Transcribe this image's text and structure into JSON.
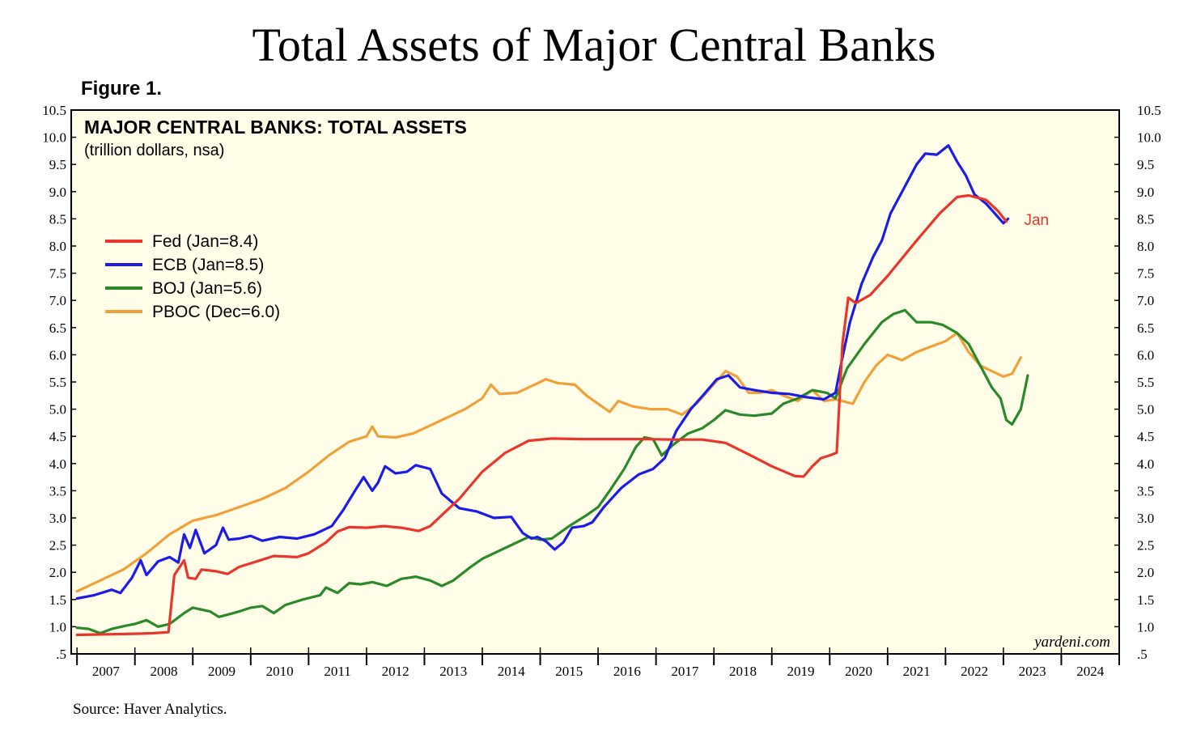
{
  "page_title": "Total Assets of Major Central Banks",
  "figure_label": "Figure 1.",
  "source": "Source: Haver Analytics.",
  "chart_data": {
    "type": "line",
    "title": "MAJOR CENTRAL BANKS: TOTAL ASSETS",
    "subtitle": "(trillion dollars, nsa)",
    "credit": "yardeni.com",
    "end_label": "Jan",
    "background": "#fffde8",
    "xlim": [
      2006.9,
      2025.0
    ],
    "ylim": [
      0.5,
      10.5
    ],
    "y_ticks": [
      ".5",
      "1.0",
      "1.5",
      "2.0",
      "2.5",
      "3.0",
      "3.5",
      "4.0",
      "4.5",
      "5.0",
      "5.5",
      "6.0",
      "6.5",
      "7.0",
      "7.5",
      "8.0",
      "8.5",
      "9.0",
      "9.5",
      "10.0",
      "10.5"
    ],
    "x_tick_labels": [
      "2007",
      "2008",
      "2009",
      "2010",
      "2011",
      "2012",
      "2013",
      "2014",
      "2015",
      "2016",
      "2017",
      "2018",
      "2019",
      "2020",
      "2021",
      "2022",
      "2023",
      "2024"
    ],
    "grid": false,
    "legend_position": "upper-left",
    "series": [
      {
        "name": "Fed (Jan=8.4)",
        "color": "#e8362a",
        "points": [
          [
            2007.0,
            0.85
          ],
          [
            2007.5,
            0.86
          ],
          [
            2008.0,
            0.87
          ],
          [
            2008.3,
            0.88
          ],
          [
            2008.58,
            0.9
          ],
          [
            2008.68,
            1.95
          ],
          [
            2008.85,
            2.22
          ],
          [
            2008.92,
            1.9
          ],
          [
            2009.05,
            1.88
          ],
          [
            2009.15,
            2.05
          ],
          [
            2009.4,
            2.02
          ],
          [
            2009.6,
            1.97
          ],
          [
            2009.8,
            2.1
          ],
          [
            2010.1,
            2.2
          ],
          [
            2010.4,
            2.3
          ],
          [
            2010.8,
            2.28
          ],
          [
            2011.0,
            2.35
          ],
          [
            2011.3,
            2.55
          ],
          [
            2011.5,
            2.75
          ],
          [
            2011.7,
            2.83
          ],
          [
            2012.0,
            2.82
          ],
          [
            2012.3,
            2.85
          ],
          [
            2012.6,
            2.82
          ],
          [
            2012.9,
            2.76
          ],
          [
            2013.1,
            2.85
          ],
          [
            2013.3,
            3.05
          ],
          [
            2013.6,
            3.35
          ],
          [
            2014.0,
            3.85
          ],
          [
            2014.4,
            4.2
          ],
          [
            2014.8,
            4.42
          ],
          [
            2015.2,
            4.46
          ],
          [
            2015.7,
            4.45
          ],
          [
            2016.2,
            4.45
          ],
          [
            2016.8,
            4.45
          ],
          [
            2017.3,
            4.44
          ],
          [
            2017.8,
            4.44
          ],
          [
            2018.2,
            4.38
          ],
          [
            2018.6,
            4.17
          ],
          [
            2019.0,
            3.95
          ],
          [
            2019.4,
            3.77
          ],
          [
            2019.55,
            3.76
          ],
          [
            2019.7,
            3.95
          ],
          [
            2019.85,
            4.1
          ],
          [
            2020.0,
            4.15
          ],
          [
            2020.12,
            4.2
          ],
          [
            2020.22,
            6.2
          ],
          [
            2020.32,
            7.05
          ],
          [
            2020.45,
            6.95
          ],
          [
            2020.7,
            7.1
          ],
          [
            2021.0,
            7.45
          ],
          [
            2021.5,
            8.1
          ],
          [
            2021.9,
            8.6
          ],
          [
            2022.2,
            8.9
          ],
          [
            2022.4,
            8.93
          ],
          [
            2022.7,
            8.85
          ],
          [
            2022.9,
            8.65
          ],
          [
            2023.05,
            8.45
          ]
        ]
      },
      {
        "name": "ECB (Jan=8.5)",
        "color": "#1c1ce8",
        "points": [
          [
            2007.0,
            1.52
          ],
          [
            2007.3,
            1.58
          ],
          [
            2007.6,
            1.68
          ],
          [
            2007.75,
            1.62
          ],
          [
            2007.95,
            1.9
          ],
          [
            2008.1,
            2.22
          ],
          [
            2008.2,
            1.95
          ],
          [
            2008.4,
            2.2
          ],
          [
            2008.6,
            2.28
          ],
          [
            2008.75,
            2.18
          ],
          [
            2008.85,
            2.7
          ],
          [
            2008.95,
            2.45
          ],
          [
            2009.05,
            2.78
          ],
          [
            2009.2,
            2.35
          ],
          [
            2009.4,
            2.5
          ],
          [
            2009.52,
            2.82
          ],
          [
            2009.62,
            2.6
          ],
          [
            2009.8,
            2.62
          ],
          [
            2010.0,
            2.67
          ],
          [
            2010.2,
            2.58
          ],
          [
            2010.5,
            2.65
          ],
          [
            2010.8,
            2.62
          ],
          [
            2011.1,
            2.7
          ],
          [
            2011.4,
            2.85
          ],
          [
            2011.6,
            3.15
          ],
          [
            2011.8,
            3.5
          ],
          [
            2011.95,
            3.75
          ],
          [
            2012.1,
            3.5
          ],
          [
            2012.2,
            3.65
          ],
          [
            2012.32,
            3.95
          ],
          [
            2012.5,
            3.82
          ],
          [
            2012.7,
            3.85
          ],
          [
            2012.85,
            3.97
          ],
          [
            2013.1,
            3.9
          ],
          [
            2013.3,
            3.45
          ],
          [
            2013.6,
            3.18
          ],
          [
            2013.9,
            3.12
          ],
          [
            2014.2,
            3.0
          ],
          [
            2014.5,
            3.02
          ],
          [
            2014.7,
            2.72
          ],
          [
            2014.85,
            2.62
          ],
          [
            2014.95,
            2.65
          ],
          [
            2015.1,
            2.57
          ],
          [
            2015.25,
            2.42
          ],
          [
            2015.4,
            2.55
          ],
          [
            2015.55,
            2.82
          ],
          [
            2015.75,
            2.85
          ],
          [
            2015.9,
            2.92
          ],
          [
            2016.1,
            3.2
          ],
          [
            2016.4,
            3.55
          ],
          [
            2016.7,
            3.8
          ],
          [
            2016.95,
            3.9
          ],
          [
            2017.15,
            4.1
          ],
          [
            2017.35,
            4.6
          ],
          [
            2017.6,
            5.0
          ],
          [
            2017.85,
            5.3
          ],
          [
            2018.05,
            5.55
          ],
          [
            2018.25,
            5.62
          ],
          [
            2018.45,
            5.4
          ],
          [
            2018.7,
            5.35
          ],
          [
            2019.0,
            5.3
          ],
          [
            2019.3,
            5.28
          ],
          [
            2019.6,
            5.22
          ],
          [
            2019.9,
            5.18
          ],
          [
            2020.1,
            5.3
          ],
          [
            2020.2,
            5.85
          ],
          [
            2020.35,
            6.6
          ],
          [
            2020.55,
            7.3
          ],
          [
            2020.75,
            7.8
          ],
          [
            2020.9,
            8.1
          ],
          [
            2021.05,
            8.6
          ],
          [
            2021.3,
            9.1
          ],
          [
            2021.5,
            9.5
          ],
          [
            2021.65,
            9.7
          ],
          [
            2021.85,
            9.68
          ],
          [
            2022.05,
            9.85
          ],
          [
            2022.2,
            9.55
          ],
          [
            2022.35,
            9.3
          ],
          [
            2022.5,
            8.95
          ],
          [
            2022.7,
            8.78
          ],
          [
            2022.85,
            8.6
          ],
          [
            2023.0,
            8.42
          ],
          [
            2023.08,
            8.5
          ]
        ]
      },
      {
        "name": "BOJ (Jan=5.6)",
        "color": "#2a8a2a",
        "points": [
          [
            2007.0,
            0.98
          ],
          [
            2007.2,
            0.96
          ],
          [
            2007.4,
            0.88
          ],
          [
            2007.6,
            0.96
          ],
          [
            2007.85,
            1.02
          ],
          [
            2008.0,
            1.05
          ],
          [
            2008.2,
            1.12
          ],
          [
            2008.4,
            1.0
          ],
          [
            2008.6,
            1.05
          ],
          [
            2008.85,
            1.25
          ],
          [
            2009.0,
            1.35
          ],
          [
            2009.3,
            1.28
          ],
          [
            2009.45,
            1.18
          ],
          [
            2009.6,
            1.22
          ],
          [
            2009.8,
            1.28
          ],
          [
            2010.0,
            1.35
          ],
          [
            2010.2,
            1.38
          ],
          [
            2010.4,
            1.25
          ],
          [
            2010.6,
            1.4
          ],
          [
            2010.9,
            1.5
          ],
          [
            2011.2,
            1.58
          ],
          [
            2011.3,
            1.72
          ],
          [
            2011.5,
            1.62
          ],
          [
            2011.7,
            1.8
          ],
          [
            2011.9,
            1.78
          ],
          [
            2012.1,
            1.82
          ],
          [
            2012.35,
            1.75
          ],
          [
            2012.6,
            1.88
          ],
          [
            2012.85,
            1.92
          ],
          [
            2013.1,
            1.85
          ],
          [
            2013.3,
            1.75
          ],
          [
            2013.5,
            1.85
          ],
          [
            2013.8,
            2.1
          ],
          [
            2014.0,
            2.25
          ],
          [
            2014.3,
            2.4
          ],
          [
            2014.6,
            2.55
          ],
          [
            2014.8,
            2.65
          ],
          [
            2015.0,
            2.6
          ],
          [
            2015.2,
            2.62
          ],
          [
            2015.5,
            2.85
          ],
          [
            2015.8,
            3.05
          ],
          [
            2016.0,
            3.2
          ],
          [
            2016.2,
            3.5
          ],
          [
            2016.45,
            3.9
          ],
          [
            2016.65,
            4.3
          ],
          [
            2016.8,
            4.48
          ],
          [
            2016.95,
            4.45
          ],
          [
            2017.1,
            4.15
          ],
          [
            2017.3,
            4.35
          ],
          [
            2017.55,
            4.55
          ],
          [
            2017.8,
            4.65
          ],
          [
            2018.0,
            4.8
          ],
          [
            2018.2,
            4.98
          ],
          [
            2018.45,
            4.9
          ],
          [
            2018.7,
            4.88
          ],
          [
            2019.0,
            4.92
          ],
          [
            2019.2,
            5.1
          ],
          [
            2019.45,
            5.2
          ],
          [
            2019.7,
            5.35
          ],
          [
            2019.95,
            5.3
          ],
          [
            2020.1,
            5.2
          ],
          [
            2020.3,
            5.75
          ],
          [
            2020.6,
            6.2
          ],
          [
            2020.9,
            6.6
          ],
          [
            2021.1,
            6.75
          ],
          [
            2021.3,
            6.82
          ],
          [
            2021.5,
            6.6
          ],
          [
            2021.75,
            6.6
          ],
          [
            2021.95,
            6.55
          ],
          [
            2022.2,
            6.4
          ],
          [
            2022.4,
            6.2
          ],
          [
            2022.6,
            5.8
          ],
          [
            2022.8,
            5.4
          ],
          [
            2022.95,
            5.2
          ],
          [
            2023.05,
            4.8
          ],
          [
            2023.15,
            4.72
          ],
          [
            2023.3,
            5.0
          ],
          [
            2023.42,
            5.62
          ]
        ]
      },
      {
        "name": "PBOC (Dec=6.0)",
        "color": "#f0a038",
        "points": [
          [
            2007.0,
            1.65
          ],
          [
            2007.4,
            1.85
          ],
          [
            2007.8,
            2.05
          ],
          [
            2008.2,
            2.35
          ],
          [
            2008.6,
            2.7
          ],
          [
            2009.0,
            2.95
          ],
          [
            2009.4,
            3.05
          ],
          [
            2009.8,
            3.2
          ],
          [
            2010.2,
            3.35
          ],
          [
            2010.6,
            3.55
          ],
          [
            2011.0,
            3.85
          ],
          [
            2011.35,
            4.15
          ],
          [
            2011.7,
            4.4
          ],
          [
            2012.0,
            4.5
          ],
          [
            2012.1,
            4.68
          ],
          [
            2012.2,
            4.5
          ],
          [
            2012.5,
            4.48
          ],
          [
            2012.8,
            4.55
          ],
          [
            2013.1,
            4.7
          ],
          [
            2013.4,
            4.85
          ],
          [
            2013.7,
            5.0
          ],
          [
            2014.0,
            5.2
          ],
          [
            2014.15,
            5.45
          ],
          [
            2014.3,
            5.28
          ],
          [
            2014.6,
            5.3
          ],
          [
            2014.9,
            5.45
          ],
          [
            2015.1,
            5.55
          ],
          [
            2015.3,
            5.48
          ],
          [
            2015.6,
            5.45
          ],
          [
            2015.8,
            5.25
          ],
          [
            2016.0,
            5.1
          ],
          [
            2016.2,
            4.95
          ],
          [
            2016.35,
            5.15
          ],
          [
            2016.6,
            5.05
          ],
          [
            2016.9,
            5.0
          ],
          [
            2017.2,
            5.0
          ],
          [
            2017.45,
            4.9
          ],
          [
            2017.7,
            5.1
          ],
          [
            2017.95,
            5.4
          ],
          [
            2018.2,
            5.7
          ],
          [
            2018.4,
            5.6
          ],
          [
            2018.6,
            5.3
          ],
          [
            2018.8,
            5.3
          ],
          [
            2019.0,
            5.35
          ],
          [
            2019.2,
            5.25
          ],
          [
            2019.45,
            5.15
          ],
          [
            2019.7,
            5.35
          ],
          [
            2019.9,
            5.15
          ],
          [
            2020.1,
            5.18
          ],
          [
            2020.4,
            5.1
          ],
          [
            2020.6,
            5.5
          ],
          [
            2020.8,
            5.8
          ],
          [
            2021.0,
            6.0
          ],
          [
            2021.25,
            5.9
          ],
          [
            2021.5,
            6.05
          ],
          [
            2021.75,
            6.15
          ],
          [
            2022.0,
            6.25
          ],
          [
            2022.2,
            6.4
          ],
          [
            2022.4,
            6.05
          ],
          [
            2022.6,
            5.8
          ],
          [
            2022.8,
            5.7
          ],
          [
            2023.0,
            5.6
          ],
          [
            2023.15,
            5.65
          ],
          [
            2023.3,
            5.95
          ]
        ]
      }
    ]
  }
}
